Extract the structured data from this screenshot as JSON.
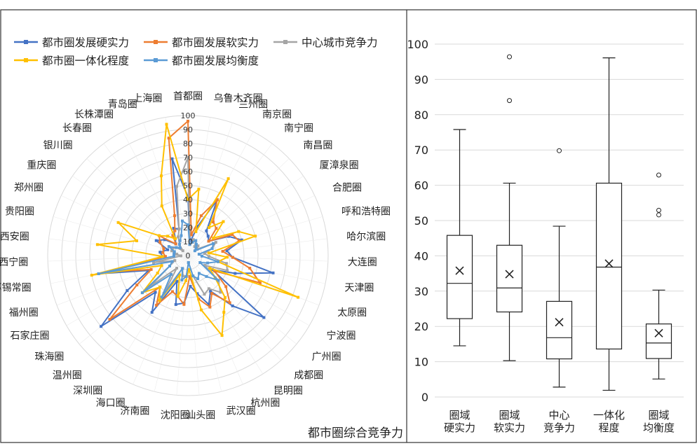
{
  "chart_data": [
    {
      "type": "radar",
      "title": "都市圈综合竞争力",
      "axis_range": [
        0,
        100
      ],
      "ticks": [
        "0",
        "10",
        "20",
        "30",
        "40",
        "50",
        "60",
        "70",
        "80",
        "90",
        "100"
      ],
      "legend_position": "top-left",
      "categories": [
        "首都圈",
        "乌鲁木齐圈",
        "兰州圈",
        "南京圈",
        "南宁圈",
        "南昌圈",
        "厦漳泉圈",
        "合肥圈",
        "呼和浩特圈",
        "哈尔滨圈",
        "大连圈",
        "天津圈",
        "太原圈",
        "宁波圈",
        "广州圈",
        "成都圈",
        "昆明圈",
        "杭州圈",
        "武汉圈",
        "汕头圈",
        "沈阳圈",
        "济南圈",
        "海口圈",
        "深圳圈",
        "温州圈",
        "珠海圈",
        "石家庄圈",
        "福州圈",
        "苏锡常圈",
        "西宁圈",
        "西安圈",
        "贵阳圈",
        "郑州圈",
        "重庆圈",
        "银川圈",
        "长春圈",
        "长株潭圈",
        "青岛圈",
        "上海圈"
      ],
      "series": [
        {
          "name": "都市圈发展硬实力",
          "color": "#4472C4",
          "values": [
            42,
            10,
            22,
            45,
            22,
            20,
            18,
            32,
            40,
            28,
            32,
            62,
            36,
            20,
            70,
            48,
            30,
            38,
            28,
            22,
            34,
            36,
            20,
            48,
            35,
            80,
            50,
            30,
            65,
            18,
            20,
            15,
            25,
            20,
            12,
            15,
            22,
            20,
            70
          ]
        },
        {
          "name": "都市圈发展软实力",
          "color": "#ED7D31",
          "values": [
            96,
            15,
            30,
            45,
            30,
            28,
            18,
            35,
            38,
            25,
            32,
            45,
            55,
            22,
            35,
            45,
            32,
            40,
            32,
            15,
            35,
            30,
            28,
            42,
            30,
            72,
            42,
            28,
            58,
            16,
            18,
            18,
            22,
            25,
            12,
            18,
            20,
            30,
            85
          ]
        },
        {
          "name": "中心城市竞争力",
          "color": "#A5A5A5",
          "values": [
            70,
            8,
            12,
            12,
            8,
            10,
            8,
            22,
            18,
            12,
            15,
            28,
            30,
            14,
            28,
            35,
            28,
            30,
            15,
            5,
            15,
            15,
            10,
            32,
            12,
            35,
            15,
            10,
            25,
            5,
            8,
            12,
            12,
            10,
            5,
            10,
            15,
            20,
            50
          ]
        },
        {
          "name": "都市圈一体化程度",
          "color": "#FFC000",
          "values": [
            40,
            48,
            18,
            62,
            25,
            35,
            22,
            40,
            50,
            15,
            28,
            22,
            84,
            18,
            25,
            40,
            48,
            62,
            40,
            10,
            18,
            30,
            15,
            38,
            30,
            42,
            25,
            20,
            70,
            18,
            65,
            38,
            55,
            25,
            20,
            15,
            40,
            60,
            95
          ]
        },
        {
          "name": "都市圈发展均衡度",
          "color": "#5B9BD5",
          "values": [
            22,
            8,
            10,
            12,
            10,
            8,
            6,
            20,
            18,
            8,
            10,
            22,
            15,
            10,
            28,
            20,
            15,
            18,
            15,
            5,
            15,
            18,
            10,
            35,
            18,
            42,
            15,
            12,
            65,
            10,
            10,
            10,
            15,
            10,
            8,
            10,
            12,
            15,
            25
          ]
        }
      ]
    },
    {
      "type": "box",
      "ylim": [
        0,
        100
      ],
      "yticks": [
        "0",
        "10",
        "20",
        "30",
        "40",
        "50",
        "60",
        "70",
        "80",
        "90",
        "100"
      ],
      "categories": [
        {
          "line1": "圈域",
          "line2": "硬实力"
        },
        {
          "line1": "圈域",
          "line2": "软实力"
        },
        {
          "line1": "中心",
          "line2": "竞争力"
        },
        {
          "line1": "一体化",
          "line2": "程度"
        },
        {
          "line1": "圈域",
          "line2": "均衡度"
        }
      ],
      "boxes": [
        {
          "min": 14.5,
          "q1": 22.2,
          "median": 32.2,
          "q3": 45.8,
          "max": 75.8,
          "mean": 35.8,
          "outliers": []
        },
        {
          "min": 10.3,
          "q1": 24.1,
          "median": 30.9,
          "q3": 43.0,
          "max": 60.6,
          "mean": 34.8,
          "outliers": [
            84.0,
            96.4
          ]
        },
        {
          "min": 2.8,
          "q1": 10.8,
          "median": 16.8,
          "q3": 27.1,
          "max": 48.4,
          "mean": 21.2,
          "outliers": [
            69.8
          ]
        },
        {
          "min": 1.9,
          "q1": 13.6,
          "median": 36.8,
          "q3": 60.6,
          "max": 96.1,
          "mean": 37.8,
          "outliers": []
        },
        {
          "min": 5.1,
          "q1": 10.9,
          "median": 15.3,
          "q3": 20.7,
          "max": 30.3,
          "mean": 18.1,
          "outliers": [
            51.6,
            52.9,
            62.9
          ]
        }
      ]
    }
  ]
}
